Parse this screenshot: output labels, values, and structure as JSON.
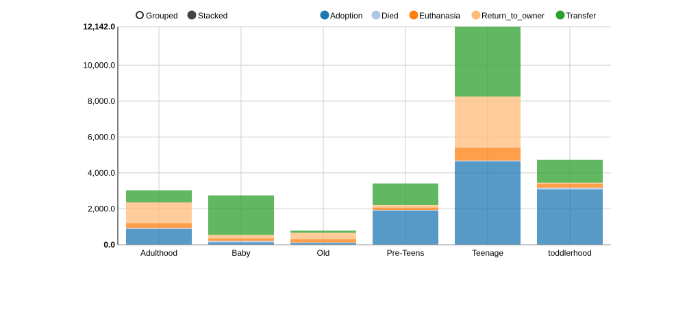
{
  "controls": {
    "grouped_label": "Grouped",
    "stacked_label": "Stacked",
    "selected": "Stacked"
  },
  "chart_data": {
    "type": "bar",
    "stacked": true,
    "categories": [
      "Adulthood",
      "Baby",
      "Old",
      "Pre-Teens",
      "Teenage",
      "toddlerhood"
    ],
    "series": [
      {
        "name": "Adoption",
        "color": "#1f77b4",
        "values": [
          880,
          140,
          100,
          1900,
          4640,
          3080
        ]
      },
      {
        "name": "Died",
        "color": "#aec7e8",
        "values": [
          50,
          80,
          30,
          40,
          50,
          90
        ]
      },
      {
        "name": "Euthanasia",
        "color": "#ff7f0e",
        "values": [
          280,
          150,
          180,
          130,
          720,
          230
        ]
      },
      {
        "name": "Return_to_owner",
        "color": "#ffbb78",
        "values": [
          1150,
          180,
          360,
          140,
          2840,
          60
        ]
      },
      {
        "name": "Transfer",
        "color": "#2ca02c",
        "values": [
          670,
          2200,
          120,
          1200,
          3892,
          1270
        ]
      }
    ],
    "ylim": [
      0,
      12142
    ],
    "yticks": [
      {
        "value": 0,
        "label": "0.0"
      },
      {
        "value": 2000,
        "label": "2,000.0"
      },
      {
        "value": 4000,
        "label": "4,000.0"
      },
      {
        "value": 6000,
        "label": "6,000.0"
      },
      {
        "value": 8000,
        "label": "8,000.0"
      },
      {
        "value": 10000,
        "label": "10,000.0"
      },
      {
        "value": 12142,
        "label": "12,142.0"
      }
    ],
    "grid": true,
    "legend_position": "top-right",
    "title": "",
    "xlabel": "",
    "ylabel": ""
  }
}
